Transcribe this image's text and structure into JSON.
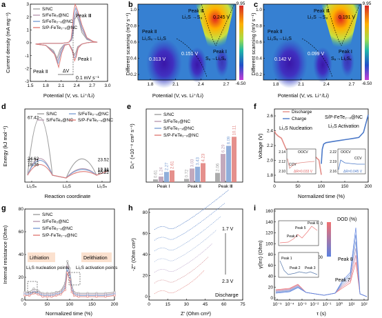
{
  "panel_letters": [
    "a",
    "b",
    "c",
    "d",
    "e",
    "f",
    "g",
    "h",
    "i"
  ],
  "colors": {
    "snc": "#9e9e9e",
    "sfete2": "#b89ab0",
    "sfete2x": "#7ca0d4",
    "spfete2x": "#e07c78",
    "charge": "#4a78c8",
    "discharge": "#e38b86"
  },
  "chart_data": [
    {
      "id": "a",
      "type": "line",
      "xlabel": "Potential (V, vs. Li⁺/Li)",
      "ylabel": "Current density (mA mg⁻¹)",
      "xlim": [
        1.5,
        3.0
      ],
      "ylim": [
        -3,
        3
      ],
      "xticks": [
        "1.5",
        "1.8",
        "2.1",
        "2.4",
        "2.7",
        "3.0"
      ],
      "yticks": [
        "-3",
        "-2",
        "-1",
        "0",
        "1",
        "2",
        "3"
      ],
      "legend": [
        "S/NC",
        "S/FeTe₂@NC",
        "S/FeTe₂₋ₓ@NC",
        "S/P-FeTe₂₋ₓ@NC"
      ],
      "annotations": [
        "Peak Ⅲ",
        "Peak Ⅰ",
        "Peak Ⅱ",
        "ΔV",
        "0.1 mV s⁻¹"
      ],
      "series": [
        {
          "name": "S/NC",
          "x": [
            1.6,
            1.8,
            1.95,
            2.02,
            2.08,
            2.15,
            2.25,
            2.3,
            2.35,
            2.38,
            2.42,
            2.5,
            2.6,
            2.7,
            2.8,
            2.72,
            2.6,
            2.5,
            2.45,
            2.4,
            2.36,
            2.33,
            2.3,
            2.25,
            2.2,
            2.1,
            2.0,
            1.9,
            1.75,
            1.6
          ],
          "y": [
            -0.1,
            -0.2,
            -0.6,
            -1.2,
            -0.5,
            -0.15,
            -0.1,
            -0.4,
            -0.9,
            -0.8,
            -0.3,
            -0.1,
            0.0,
            0.05,
            0.05,
            0.1,
            0.25,
            0.8,
            1.6,
            2.1,
            1.8,
            0.6,
            0.2,
            0.05,
            0.0,
            -0.05,
            -0.05,
            -0.05,
            -0.05,
            -0.1
          ]
        },
        {
          "name": "S/FeTe₂@NC",
          "x": [
            1.6,
            1.8,
            1.95,
            2.03,
            2.09,
            2.15,
            2.25,
            2.31,
            2.35,
            2.39,
            2.43,
            2.5,
            2.6,
            2.7,
            2.8,
            2.72,
            2.6,
            2.5,
            2.44,
            2.39,
            2.36,
            2.33,
            2.3,
            2.25,
            2.2,
            2.1,
            2.0,
            1.9,
            1.75,
            1.6
          ],
          "y": [
            -0.1,
            -0.2,
            -0.7,
            -1.4,
            -0.6,
            -0.15,
            -0.1,
            -0.5,
            -1.0,
            -0.9,
            -0.3,
            -0.1,
            0.0,
            0.05,
            0.05,
            0.1,
            0.3,
            1.0,
            1.9,
            2.4,
            2.0,
            0.7,
            0.2,
            0.05,
            0.0,
            -0.05,
            -0.05,
            -0.05,
            -0.05,
            -0.1
          ]
        },
        {
          "name": "S/FeTe₂₋ₓ@NC",
          "x": [
            1.6,
            1.8,
            1.96,
            2.04,
            2.1,
            2.16,
            2.25,
            2.31,
            2.35,
            2.39,
            2.43,
            2.5,
            2.6,
            2.7,
            2.8,
            2.72,
            2.6,
            2.5,
            2.43,
            2.38,
            2.35,
            2.32,
            2.3,
            2.25,
            2.2,
            2.1,
            2.0,
            1.9,
            1.75,
            1.6
          ],
          "y": [
            -0.1,
            -0.2,
            -0.8,
            -1.6,
            -0.7,
            -0.2,
            -0.1,
            -0.6,
            -1.2,
            -1.0,
            -0.4,
            -0.1,
            0.0,
            0.05,
            0.05,
            0.1,
            0.35,
            1.2,
            2.2,
            2.7,
            2.2,
            0.8,
            0.25,
            0.05,
            0.0,
            -0.05,
            -0.05,
            -0.05,
            -0.05,
            -0.1
          ]
        },
        {
          "name": "S/P-FeTe₂₋ₓ@NC",
          "x": [
            1.6,
            1.8,
            1.97,
            2.05,
            2.11,
            2.17,
            2.25,
            2.32,
            2.36,
            2.39,
            2.43,
            2.5,
            2.6,
            2.7,
            2.8,
            2.72,
            2.6,
            2.5,
            2.42,
            2.37,
            2.34,
            2.31,
            2.29,
            2.25,
            2.2,
            2.1,
            2.0,
            1.9,
            1.75,
            1.6
          ],
          "y": [
            -0.1,
            -0.2,
            -0.9,
            -1.9,
            -0.8,
            -0.2,
            -0.1,
            -0.7,
            -1.4,
            -1.1,
            -0.4,
            -0.1,
            0.0,
            0.05,
            0.05,
            0.1,
            0.4,
            1.4,
            2.5,
            3.0,
            2.4,
            0.9,
            0.3,
            0.05,
            0.0,
            -0.05,
            -0.05,
            -0.05,
            -0.05,
            -0.1
          ]
        }
      ]
    },
    {
      "id": "b",
      "type": "heatmap",
      "xlabel": "Potential (V, vs. Li⁺/Li)",
      "ylabel": "Different scanning (mV s⁻¹)",
      "xlim": [
        1.65,
        2.8
      ],
      "ylim": [
        0.1,
        1.0
      ],
      "xticks": [
        "1.8",
        "2.1",
        "2.4",
        "2.7"
      ],
      "yticks": [
        "0.2",
        "0.4",
        "0.6",
        "0.8",
        "1.0"
      ],
      "colorbar": {
        "max": "9.95",
        "min": "-6.50"
      },
      "annotations": [
        "Peak Ⅲ",
        "Li₂S →S₈",
        "0.245 V",
        "Peak Ⅱ",
        "Li₂Sₓ→Li₂S",
        "0.313 V",
        "0.151 V",
        "Peak Ⅰ",
        "S₈→Li₂Sₓ"
      ]
    },
    {
      "id": "c",
      "type": "heatmap",
      "xlabel": "Potential (V, vs. Li⁺/Li)",
      "ylabel": "Different scanning (mV s⁻¹)",
      "xlim": [
        1.65,
        2.8
      ],
      "ylim": [
        0.1,
        1.0
      ],
      "xticks": [
        "1.8",
        "2.1",
        "2.4",
        "2.7"
      ],
      "yticks": [
        "0.2",
        "0.4",
        "0.6",
        "0.8",
        "1.0"
      ],
      "colorbar": {
        "max": "9.95",
        "min": "-6.50"
      },
      "annotations": [
        "Peak Ⅲ",
        "Li₂S →S₈",
        "0.191 V",
        "Peak Ⅱ",
        "Li₂Sₓ→Li₂S",
        "0.142 V",
        "0.099 V",
        "Peak Ⅰ",
        "S₈→Li₂Sₓ"
      ]
    },
    {
      "id": "d",
      "type": "line",
      "xlabel": "Reaction coordinate",
      "ylabel": "Energy (kJ mol⁻¹)",
      "xticks": [
        "Li₂Sₙ",
        "Li₂S",
        "Li₂Sₙ"
      ],
      "legend": [
        "S/NC",
        "S/FeTe₂@NC",
        "S/FeTe₂₋ₓ@NC",
        "S/P-FeTe₂₋ₓ@NC"
      ],
      "series": [
        {
          "name": "S/NC",
          "barrier_left": 67.42,
          "barrier_right": 23.52
        },
        {
          "name": "S/FeTe₂@NC",
          "barrier_left": 24.62,
          "barrier_right": 13.31
        },
        {
          "name": "S/FeTe₂₋ₓ@NC",
          "barrier_left": 22.71,
          "barrier_right": 12.36
        },
        {
          "name": "S/P-FeTe₂₋ₓ@NC",
          "barrier_left": 18.36,
          "barrier_right": 10.22
        }
      ],
      "ylim": [
        0,
        72
      ]
    },
    {
      "id": "e",
      "type": "bar",
      "ylabel": "Dₗᵢ⁺ (×10⁻⁸ cm² s⁻¹)",
      "categories": [
        "Peak Ⅰ",
        "Peak Ⅱ",
        "Peak Ⅲ"
      ],
      "legend": [
        "S/NC",
        "S/FeTe₂@NC",
        "S/FeTe₂₋ₓ@NC",
        "S/P-FeTe₂₋ₓ@NC"
      ],
      "ylim": [
        0,
        16
      ],
      "series": [
        {
          "name": "S/NC",
          "values": [
            0.61,
            0.72,
            2.06
          ]
        },
        {
          "name": "S/FeTe₂@NC",
          "values": [
            1.24,
            3.03,
            6.29
          ]
        },
        {
          "name": "S/FeTe₂₋ₓ@NC",
          "values": [
            2.27,
            3.43,
            8.09
          ]
        },
        {
          "name": "S/P-FeTe₂₋ₓ@NC",
          "values": [
            2.61,
            4.23,
            10.11
          ]
        }
      ]
    },
    {
      "id": "f",
      "type": "line",
      "xlabel": "Normalized time (%)",
      "ylabel": "Voltage (V)",
      "xlim": [
        0,
        200
      ],
      "ylim": [
        1.7,
        2.7
      ],
      "xticks": [
        "0",
        "50",
        "100",
        "150",
        "200"
      ],
      "yticks": [
        "1.8",
        "2.0",
        "2.2",
        "2.4",
        "2.6"
      ],
      "legend": [
        "Discharge",
        "Charge"
      ],
      "title": "S/P-FeTe₂₋ₓ@NC",
      "annotations": [
        "Li₂S Nucleation",
        "Li₂S Activation",
        "OOCV",
        "CCV",
        "ΔR=0.033 V",
        "OOCV",
        "CCV",
        "ΔR=0.045 V"
      ],
      "inset_ticks_left": [
        "2.14",
        "2.12",
        "2.10"
      ],
      "inset_ticks_right": [
        "2.22",
        "2.19",
        "2.16"
      ],
      "series": [
        {
          "name": "Discharge",
          "x": [
            0,
            3,
            8,
            15,
            25,
            35,
            45,
            55,
            65,
            75,
            85,
            95,
            100
          ],
          "y": [
            2.4,
            2.36,
            2.33,
            2.3,
            2.15,
            2.12,
            2.11,
            2.1,
            2.09,
            2.08,
            2.06,
            2.0,
            1.8
          ]
        },
        {
          "name": "Charge",
          "x": [
            100,
            102,
            105,
            110,
            120,
            130,
            140,
            150,
            160,
            170,
            180,
            190,
            200
          ],
          "y": [
            1.95,
            2.15,
            2.22,
            2.24,
            2.25,
            2.26,
            2.27,
            2.28,
            2.29,
            2.3,
            2.31,
            2.38,
            2.62
          ]
        }
      ]
    },
    {
      "id": "g",
      "type": "line",
      "xlabel": "Normalized time (%)",
      "ylabel": "Internal resistance (Ohm)",
      "xlim": [
        0,
        200
      ],
      "ylim": [
        0,
        80
      ],
      "xticks": [
        "0",
        "50",
        "100",
        "150",
        "200"
      ],
      "yticks": [
        "0",
        "20",
        "40",
        "60",
        "80"
      ],
      "legend": [
        "S/NC",
        "S/FeTe₂@NC",
        "S/FeTe₂₋ₓ@NC",
        "S/P-FeTe₂₋ₓ@NC"
      ],
      "annotations": [
        "Lithiation",
        "Delithiation",
        "Li₂S nucleation points",
        "Li₂S activation points"
      ],
      "series": [
        {
          "name": "S/NC",
          "x": [
            0,
            10,
            20,
            30,
            40,
            50,
            60,
            70,
            80,
            90,
            95,
            100,
            105,
            110,
            120,
            140,
            160,
            180,
            200
          ],
          "y": [
            7,
            7,
            10,
            8,
            6,
            6,
            6,
            7,
            8,
            15,
            34,
            28,
            12,
            7,
            6,
            6,
            6,
            6,
            7
          ]
        },
        {
          "name": "S/FeTe₂@NC",
          "x": [
            0,
            10,
            20,
            30,
            40,
            50,
            60,
            70,
            80,
            90,
            95,
            100,
            105,
            110,
            120,
            140,
            160,
            180,
            200
          ],
          "y": [
            6,
            6,
            8,
            7,
            5,
            5,
            5,
            6,
            7,
            13,
            30,
            24,
            10,
            6,
            5,
            5,
            5,
            5,
            6
          ]
        },
        {
          "name": "S/FeTe₂₋ₓ@NC",
          "x": [
            0,
            10,
            20,
            30,
            40,
            50,
            60,
            70,
            80,
            90,
            95,
            100,
            105,
            110,
            120,
            140,
            160,
            180,
            200
          ],
          "y": [
            5,
            5,
            7,
            6,
            4,
            4,
            4,
            5,
            6,
            11,
            27,
            21,
            9,
            5,
            4,
            4,
            4,
            4,
            5
          ]
        },
        {
          "name": "S/P-FeTe₂₋ₓ@NC",
          "x": [
            0,
            10,
            20,
            30,
            40,
            50,
            60,
            70,
            80,
            90,
            95,
            100,
            105,
            110,
            120,
            140,
            160,
            180,
            200
          ],
          "y": [
            4,
            4,
            6,
            5,
            3,
            3,
            3,
            4,
            5,
            9,
            24,
            18,
            7,
            4,
            3,
            3,
            3,
            3,
            4
          ]
        }
      ]
    },
    {
      "id": "h",
      "type": "line",
      "xlabel": "Z′    (Ohm cm²)",
      "ylabel": "-Z″ (Ohm cm²)",
      "xlim": [
        0,
        75
      ],
      "ylim": [
        0,
        80
      ],
      "xticks": [
        "0",
        "15",
        "30",
        "45",
        "60",
        "75"
      ],
      "yticks": [
        "0",
        "20",
        "40",
        "60",
        "80"
      ],
      "annotations": [
        "1.7 V",
        "2.3 V",
        "Discharge"
      ]
    },
    {
      "id": "i",
      "type": "line",
      "xlabel": "τ (s)",
      "ylabel": "γ(lnτ) (Ohm)",
      "ylim": [
        0,
        160
      ],
      "yticks": [
        "0",
        "20",
        "40",
        "60",
        "80",
        "100",
        "120",
        "140",
        "160"
      ],
      "xticks": [
        "10⁻⁵",
        "10⁻⁴",
        "10⁻³",
        "10⁻²",
        "10⁻¹",
        "10⁰",
        "10¹",
        "10²"
      ],
      "colorbar": {
        "title": "DOD (%)",
        "max": "0",
        "min": "100"
      },
      "annotations": [
        "Peak 8",
        "Peak 7",
        "Peak 5",
        "Peak 6",
        "Peak 4",
        "Peak 1",
        "Peak 2",
        "Peak 3"
      ]
    }
  ]
}
